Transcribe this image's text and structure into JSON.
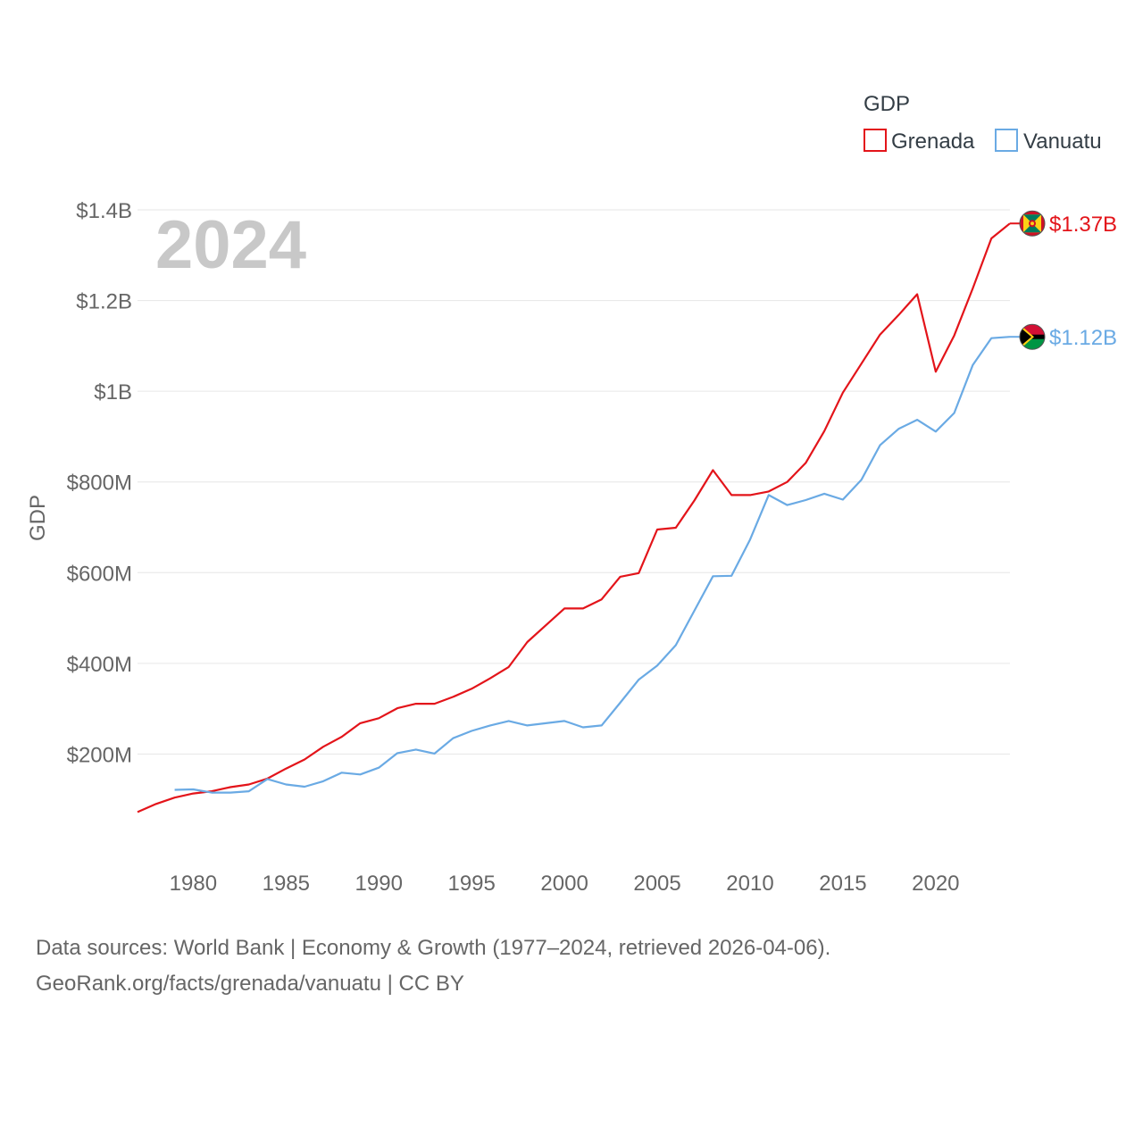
{
  "chart_data": {
    "type": "line",
    "title": "GDP",
    "ylabel": "GDP",
    "xlabel": "",
    "current_year_label": "2024",
    "xlim": [
      1977,
      2024
    ],
    "ylim": [
      0,
      1400000000
    ],
    "x_ticks": [
      1980,
      1985,
      1990,
      1995,
      2000,
      2005,
      2010,
      2015,
      2020
    ],
    "y_ticks": [
      {
        "value": 200000000,
        "label": "$200M"
      },
      {
        "value": 400000000,
        "label": "$400M"
      },
      {
        "value": 600000000,
        "label": "$600M"
      },
      {
        "value": 800000000,
        "label": "$800M"
      },
      {
        "value": 1000000000,
        "label": "$1B"
      },
      {
        "value": 1200000000,
        "label": "$1.2B"
      },
      {
        "value": 1400000000,
        "label": "$1.4B"
      }
    ],
    "grid": true,
    "legend": {
      "title": "GDP",
      "placement": "top-right"
    },
    "series": [
      {
        "name": "Grenada",
        "color": "#e3141a",
        "end_label": "$1.37B",
        "x": [
          1977,
          1978,
          1979,
          1980,
          1981,
          1982,
          1983,
          1984,
          1985,
          1986,
          1987,
          1988,
          1989,
          1990,
          1991,
          1992,
          1993,
          1994,
          1995,
          1996,
          1997,
          1998,
          1999,
          2000,
          2001,
          2002,
          2003,
          2004,
          2005,
          2006,
          2007,
          2008,
          2009,
          2010,
          2011,
          2012,
          2013,
          2014,
          2015,
          2016,
          2017,
          2018,
          2019,
          2020,
          2021,
          2022,
          2023,
          2024
        ],
        "values": [
          72000000,
          90000000,
          104000000,
          113000000,
          118000000,
          127000000,
          133000000,
          146000000,
          168000000,
          188000000,
          216000000,
          238000000,
          268000000,
          279000000,
          301000000,
          311000000,
          311000000,
          326000000,
          344000000,
          367000000,
          392000000,
          447000000,
          484000000,
          521000000,
          521000000,
          541000000,
          591000000,
          599000000,
          695000000,
          699000000,
          759000000,
          826000000,
          771000000,
          771000000,
          779000000,
          800000000,
          842000000,
          912000000,
          997000000,
          1061000000,
          1125000000,
          1168000000,
          1214000000,
          1043000000,
          1123000000,
          1227000000,
          1337000000,
          1370000000
        ]
      },
      {
        "name": "Vanuatu",
        "color": "#6aaae4",
        "end_label": "$1.12B",
        "x": [
          1979,
          1980,
          1981,
          1982,
          1983,
          1984,
          1985,
          1986,
          1987,
          1988,
          1989,
          1990,
          1991,
          1992,
          1993,
          1994,
          1995,
          1996,
          1997,
          1998,
          1999,
          2000,
          2001,
          2002,
          2003,
          2004,
          2005,
          2006,
          2007,
          2008,
          2009,
          2010,
          2011,
          2012,
          2013,
          2014,
          2015,
          2016,
          2017,
          2018,
          2019,
          2020,
          2021,
          2022,
          2023,
          2024
        ],
        "values": [
          121000000,
          122000000,
          115000000,
          115000000,
          118000000,
          145000000,
          133000000,
          128000000,
          140000000,
          159000000,
          155000000,
          170000000,
          202000000,
          210000000,
          201000000,
          235000000,
          251000000,
          263000000,
          273000000,
          263000000,
          268000000,
          273000000,
          259000000,
          263000000,
          313000000,
          364000000,
          395000000,
          440000000,
          516000000,
          592000000,
          593000000,
          673000000,
          771000000,
          749000000,
          760000000,
          774000000,
          761000000,
          805000000,
          881000000,
          917000000,
          937000000,
          911000000,
          952000000,
          1058000000,
          1117000000,
          1120000000
        ]
      }
    ]
  },
  "footer": {
    "line1": "Data sources: World Bank | Economy & Growth (1977–2024, retrieved 2026-04-06).",
    "line2": "GeoRank.org/facts/grenada/vanuatu | CC BY"
  }
}
